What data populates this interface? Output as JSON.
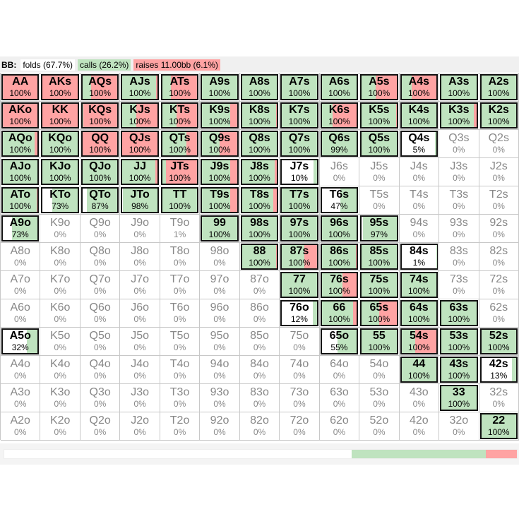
{
  "legend": {
    "player": "BB:",
    "folds": "folds (67.7%)",
    "calls": "calls (26.2%)",
    "raises": "raises 11.00bb (6.1%)"
  },
  "colors": {
    "fold": "#ffffff",
    "call": "#bfe3bf",
    "raise": "#ffa3a3"
  },
  "totals": {
    "fold": 0.677,
    "call": 0.262,
    "raise": 0.061
  },
  "grid": [
    [
      [
        "AA",
        "100%",
        0,
        1,
        1
      ],
      [
        "AKs",
        "100%",
        0,
        1,
        1
      ],
      [
        "AQs",
        "100%",
        0.25,
        0.75,
        1
      ],
      [
        "AJs",
        "100%",
        0.97,
        0.03,
        1
      ],
      [
        "ATs",
        "100%",
        0.25,
        0.75,
        1
      ],
      [
        "A9s",
        "100%",
        1,
        0,
        1
      ],
      [
        "A8s",
        "100%",
        1,
        0,
        1
      ],
      [
        "A7s",
        "100%",
        1,
        0,
        1
      ],
      [
        "A6s",
        "100%",
        1,
        0,
        1
      ],
      [
        "A5s",
        "100%",
        0.4,
        0.6,
        1
      ],
      [
        "A4s",
        "100%",
        0.3,
        0.7,
        1
      ],
      [
        "A3s",
        "100%",
        1,
        0,
        1
      ],
      [
        "A2s",
        "100%",
        1,
        0,
        1
      ]
    ],
    [
      [
        "AKo",
        "100%",
        0,
        1,
        1
      ],
      [
        "KK",
        "100%",
        0,
        1,
        1
      ],
      [
        "KQs",
        "100%",
        0.03,
        0.97,
        1
      ],
      [
        "KJs",
        "100%",
        0.4,
        0.6,
        1
      ],
      [
        "KTs",
        "100%",
        0.4,
        0.6,
        1
      ],
      [
        "K9s",
        "100%",
        0.8,
        0.2,
        1
      ],
      [
        "K8s",
        "100%",
        0.97,
        0.03,
        1
      ],
      [
        "K7s",
        "100%",
        1,
        0,
        1
      ],
      [
        "K6s",
        "100%",
        0.3,
        0.7,
        1
      ],
      [
        "K5s",
        "100%",
        0.98,
        0.02,
        1
      ],
      [
        "K4s",
        "100%",
        1,
        0,
        1
      ],
      [
        "K3s",
        "100%",
        0.92,
        0.08,
        1
      ],
      [
        "K2s",
        "100%",
        1,
        0,
        1
      ]
    ],
    [
      [
        "AQo",
        "100%",
        0.9,
        0.1,
        1
      ],
      [
        "KQo",
        "100%",
        1,
        0,
        1
      ],
      [
        "QQ",
        "100%",
        0,
        1,
        1
      ],
      [
        "QJs",
        "100%",
        0,
        1,
        1
      ],
      [
        "QTs",
        "100%",
        0.7,
        0.3,
        1
      ],
      [
        "Q9s",
        "100%",
        0.5,
        0.5,
        1
      ],
      [
        "Q8s",
        "100%",
        1,
        0,
        1
      ],
      [
        "Q7s",
        "100%",
        1,
        0,
        1
      ],
      [
        "Q6s",
        "99%",
        0.99,
        0,
        1
      ],
      [
        "Q5s",
        "100%",
        1,
        0,
        1
      ],
      [
        "Q4s",
        "5%",
        0.05,
        0,
        1
      ],
      [
        "Q3s",
        "0%",
        0,
        0,
        0
      ],
      [
        "Q2s",
        "0%",
        0,
        0,
        0
      ]
    ],
    [
      [
        "AJo",
        "100%",
        1,
        0,
        1
      ],
      [
        "KJo",
        "100%",
        1,
        0,
        1
      ],
      [
        "QJo",
        "100%",
        1,
        0,
        1
      ],
      [
        "JJ",
        "100%",
        0.95,
        0.05,
        1
      ],
      [
        "JTs",
        "100%",
        0.1,
        0.9,
        1
      ],
      [
        "J9s",
        "100%",
        0.8,
        0.2,
        1
      ],
      [
        "J8s",
        "100%",
        0.93,
        0.07,
        1
      ],
      [
        "J7s",
        "10%",
        0.1,
        0,
        1
      ],
      [
        "J6s",
        "0%",
        0,
        0,
        0
      ],
      [
        "J5s",
        "0%",
        0,
        0,
        0
      ],
      [
        "J4s",
        "0%",
        0,
        0,
        0
      ],
      [
        "J3s",
        "0%",
        0,
        0,
        0
      ],
      [
        "J2s",
        "0%",
        0,
        0,
        0
      ]
    ],
    [
      [
        "ATo",
        "100%",
        0.97,
        0.03,
        1
      ],
      [
        "KTo",
        "73%",
        0.73,
        0,
        1
      ],
      [
        "QTo",
        "87%",
        0.87,
        0,
        1
      ],
      [
        "JTo",
        "98%",
        0.98,
        0,
        1
      ],
      [
        "TT",
        "100%",
        1,
        0,
        1
      ],
      [
        "T9s",
        "100%",
        0.8,
        0.2,
        1
      ],
      [
        "T8s",
        "100%",
        0.9,
        0.1,
        1
      ],
      [
        "T7s",
        "100%",
        1,
        0,
        1
      ],
      [
        "T6s",
        "47%",
        0.47,
        0,
        1
      ],
      [
        "T5s",
        "0%",
        0,
        0,
        0
      ],
      [
        "T4s",
        "0%",
        0,
        0,
        0
      ],
      [
        "T3s",
        "0%",
        0,
        0,
        0
      ],
      [
        "T2s",
        "0%",
        0,
        0,
        0
      ]
    ],
    [
      [
        "A9o",
        "73%",
        0.73,
        0,
        1
      ],
      [
        "K9o",
        "0%",
        0,
        0,
        0
      ],
      [
        "Q9o",
        "0%",
        0,
        0,
        0
      ],
      [
        "J9o",
        "0%",
        0,
        0,
        0
      ],
      [
        "T9o",
        "1%",
        0.01,
        0,
        0
      ],
      [
        "99",
        "100%",
        1,
        0,
        1
      ],
      [
        "98s",
        "100%",
        1,
        0,
        1
      ],
      [
        "97s",
        "100%",
        1,
        0,
        1
      ],
      [
        "96s",
        "100%",
        1,
        0,
        1
      ],
      [
        "95s",
        "97%",
        0.97,
        0,
        1
      ],
      [
        "94s",
        "0%",
        0,
        0,
        0
      ],
      [
        "93s",
        "0%",
        0,
        0,
        0
      ],
      [
        "92s",
        "0%",
        0,
        0,
        0
      ]
    ],
    [
      [
        "A8o",
        "0%",
        0,
        0,
        0
      ],
      [
        "K8o",
        "0%",
        0,
        0,
        0
      ],
      [
        "Q8o",
        "0%",
        0,
        0,
        0
      ],
      [
        "J8o",
        "0%",
        0,
        0,
        0
      ],
      [
        "T8o",
        "0%",
        0,
        0,
        0
      ],
      [
        "98o",
        "0%",
        0,
        0,
        0
      ],
      [
        "88",
        "100%",
        0.97,
        0.03,
        1
      ],
      [
        "87s",
        "100%",
        0.65,
        0.35,
        1
      ],
      [
        "86s",
        "100%",
        0.97,
        0.03,
        1
      ],
      [
        "85s",
        "100%",
        1,
        0,
        1
      ],
      [
        "84s",
        "1%",
        0.01,
        0,
        1
      ],
      [
        "83s",
        "0%",
        0,
        0,
        0
      ],
      [
        "82s",
        "0%",
        0,
        0,
        0
      ]
    ],
    [
      [
        "A7o",
        "0%",
        0,
        0,
        0
      ],
      [
        "K7o",
        "0%",
        0,
        0,
        0
      ],
      [
        "Q7o",
        "0%",
        0,
        0,
        0
      ],
      [
        "J7o",
        "0%",
        0,
        0,
        0
      ],
      [
        "T7o",
        "0%",
        0,
        0,
        0
      ],
      [
        "97o",
        "0%",
        0,
        0,
        0
      ],
      [
        "87o",
        "0%",
        0,
        0,
        0
      ],
      [
        "77",
        "100%",
        1,
        0,
        1
      ],
      [
        "76s",
        "100%",
        0.6,
        0.4,
        1
      ],
      [
        "75s",
        "100%",
        1,
        0,
        1
      ],
      [
        "74s",
        "100%",
        1,
        0,
        1
      ],
      [
        "73s",
        "0%",
        0,
        0,
        0
      ],
      [
        "72s",
        "0%",
        0,
        0,
        0
      ]
    ],
    [
      [
        "A6o",
        "0%",
        0,
        0,
        0
      ],
      [
        "K6o",
        "0%",
        0,
        0,
        0
      ],
      [
        "Q6o",
        "0%",
        0,
        0,
        0
      ],
      [
        "J6o",
        "0%",
        0,
        0,
        0
      ],
      [
        "T6o",
        "0%",
        0,
        0,
        0
      ],
      [
        "96o",
        "0%",
        0,
        0,
        0
      ],
      [
        "86o",
        "0%",
        0,
        0,
        0
      ],
      [
        "76o",
        "12%",
        0.12,
        0,
        1
      ],
      [
        "66",
        "100%",
        0.9,
        0.1,
        1
      ],
      [
        "65s",
        "100%",
        0.5,
        0.5,
        1
      ],
      [
        "64s",
        "100%",
        1,
        0,
        1
      ],
      [
        "63s",
        "100%",
        1,
        0,
        1
      ],
      [
        "62s",
        "0%",
        0,
        0,
        0
      ]
    ],
    [
      [
        "A5o",
        "32%",
        0.32,
        0,
        1
      ],
      [
        "K5o",
        "0%",
        0,
        0,
        0
      ],
      [
        "Q5o",
        "0%",
        0,
        0,
        0
      ],
      [
        "J5o",
        "0%",
        0,
        0,
        0
      ],
      [
        "T5o",
        "0%",
        0,
        0,
        0
      ],
      [
        "95o",
        "0%",
        0,
        0,
        0
      ],
      [
        "85o",
        "0%",
        0,
        0,
        0
      ],
      [
        "75o",
        "0%",
        0,
        0,
        0
      ],
      [
        "65o",
        "55%",
        0.55,
        0,
        1
      ],
      [
        "55",
        "100%",
        1,
        0,
        1
      ],
      [
        "54s",
        "100%",
        0.4,
        0.6,
        1
      ],
      [
        "53s",
        "100%",
        1,
        0,
        1
      ],
      [
        "52s",
        "100%",
        1,
        0,
        1
      ]
    ],
    [
      [
        "A4o",
        "0%",
        0,
        0,
        0
      ],
      [
        "K4o",
        "0%",
        0,
        0,
        0
      ],
      [
        "Q4o",
        "0%",
        0,
        0,
        0
      ],
      [
        "J4o",
        "0%",
        0,
        0,
        0
      ],
      [
        "T4o",
        "0%",
        0,
        0,
        0
      ],
      [
        "94o",
        "0%",
        0,
        0,
        0
      ],
      [
        "84o",
        "0%",
        0,
        0,
        0
      ],
      [
        "74o",
        "0%",
        0,
        0,
        0
      ],
      [
        "64o",
        "0%",
        0,
        0,
        0
      ],
      [
        "54o",
        "0%",
        0,
        0,
        0
      ],
      [
        "44",
        "100%",
        1,
        0,
        1
      ],
      [
        "43s",
        "100%",
        1,
        0,
        1
      ],
      [
        "42s",
        "13%",
        0.13,
        0,
        1
      ]
    ],
    [
      [
        "A3o",
        "0%",
        0,
        0,
        0
      ],
      [
        "K3o",
        "0%",
        0,
        0,
        0
      ],
      [
        "Q3o",
        "0%",
        0,
        0,
        0
      ],
      [
        "J3o",
        "0%",
        0,
        0,
        0
      ],
      [
        "T3o",
        "0%",
        0,
        0,
        0
      ],
      [
        "93o",
        "0%",
        0,
        0,
        0
      ],
      [
        "83o",
        "0%",
        0,
        0,
        0
      ],
      [
        "73o",
        "0%",
        0,
        0,
        0
      ],
      [
        "63o",
        "0%",
        0,
        0,
        0
      ],
      [
        "53o",
        "0%",
        0,
        0,
        0
      ],
      [
        "43o",
        "0%",
        0,
        0,
        0
      ],
      [
        "33",
        "100%",
        1,
        0,
        1
      ],
      [
        "32s",
        "0%",
        0,
        0,
        0
      ]
    ],
    [
      [
        "A2o",
        "0%",
        0,
        0,
        0
      ],
      [
        "K2o",
        "0%",
        0,
        0,
        0
      ],
      [
        "Q2o",
        "0%",
        0,
        0,
        0
      ],
      [
        "J2o",
        "0%",
        0,
        0,
        0
      ],
      [
        "T2o",
        "0%",
        0,
        0,
        0
      ],
      [
        "92o",
        "0%",
        0,
        0,
        0
      ],
      [
        "82o",
        "0%",
        0,
        0,
        0
      ],
      [
        "72o",
        "0%",
        0,
        0,
        0
      ],
      [
        "62o",
        "0%",
        0,
        0,
        0
      ],
      [
        "52o",
        "0%",
        0,
        0,
        0
      ],
      [
        "42o",
        "0%",
        0,
        0,
        0
      ],
      [
        "32o",
        "0%",
        0,
        0,
        0
      ],
      [
        "22",
        "100%",
        1,
        0,
        1
      ]
    ]
  ]
}
